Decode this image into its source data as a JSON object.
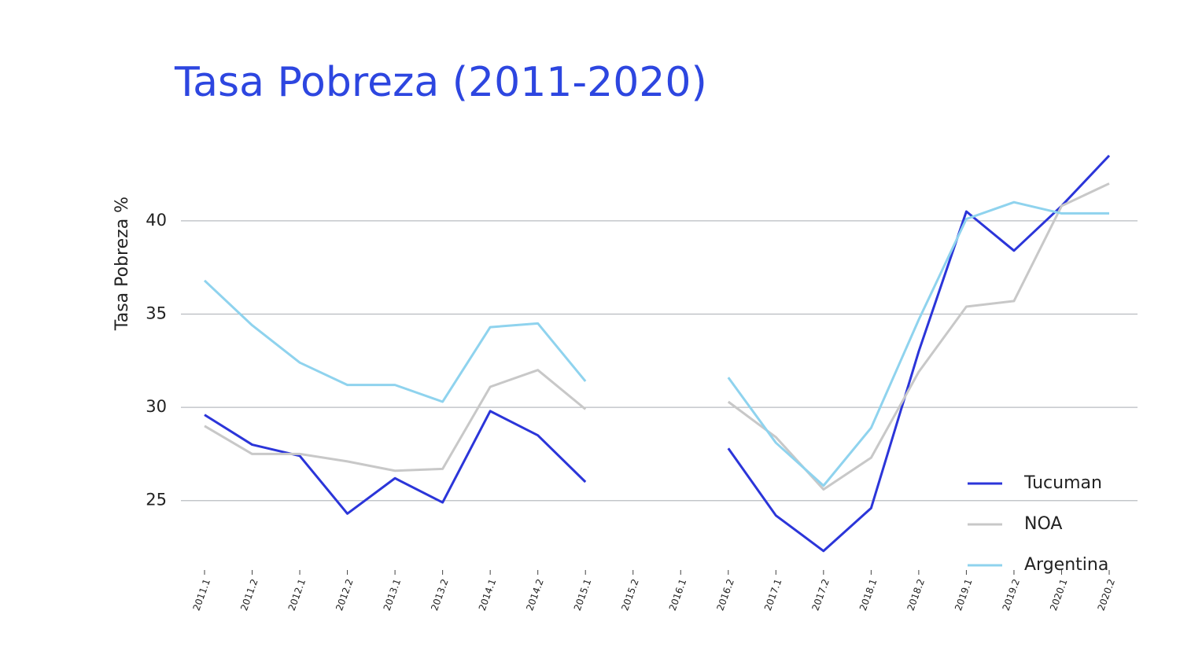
{
  "chart_data": {
    "type": "line",
    "title": "Tasa Pobreza (2011-2020)",
    "y_label": "Tasa Pobreza %",
    "categories": [
      "2011.1",
      "2011.2",
      "2012.1",
      "2012.2",
      "2013.1",
      "2013.2",
      "2014.1",
      "2014.2",
      "2015.1",
      "2015.2",
      "2016.1",
      "2016.2",
      "2017.1",
      "2017.2",
      "2018.1",
      "2018.2",
      "2019.1",
      "2019.2",
      "2020.1",
      "2020.2"
    ],
    "series": [
      {
        "name": "Tucuman",
        "color": "#2b35d9",
        "values": [
          29.6,
          28.0,
          27.4,
          24.3,
          26.2,
          24.9,
          29.8,
          28.5,
          26.0,
          null,
          null,
          27.8,
          24.2,
          22.3,
          24.6,
          33.0,
          40.5,
          38.4,
          40.8,
          43.5
        ]
      },
      {
        "name": "NOA",
        "color": "#c8c8c8",
        "values": [
          29.0,
          27.5,
          27.5,
          27.1,
          26.6,
          26.7,
          31.1,
          32.0,
          29.9,
          null,
          null,
          30.3,
          28.4,
          25.6,
          27.3,
          31.9,
          35.4,
          35.7,
          40.8,
          42.0
        ]
      },
      {
        "name": "Argentina",
        "color": "#8fd3ee",
        "values": [
          36.8,
          34.4,
          32.4,
          31.2,
          31.2,
          30.3,
          34.3,
          34.5,
          31.4,
          null,
          null,
          31.6,
          28.1,
          25.8,
          28.9,
          34.7,
          40.1,
          41.0,
          40.4,
          40.4
        ]
      }
    ],
    "ylim": [
      21.7,
      44
    ],
    "yticks": [
      25,
      30,
      35,
      40
    ],
    "grid": true,
    "legend": "bottom-right"
  }
}
